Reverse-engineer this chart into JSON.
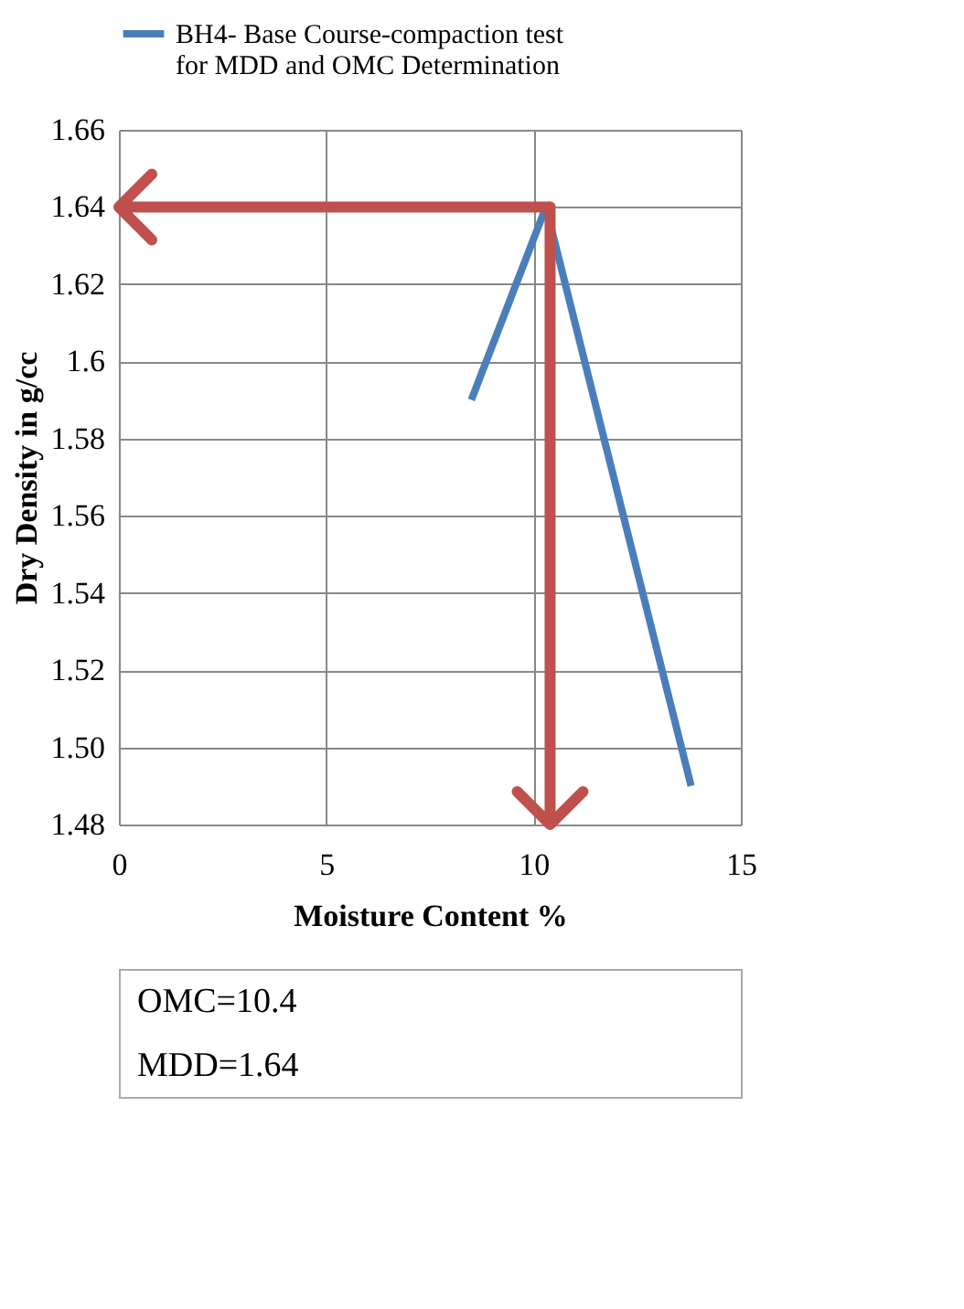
{
  "chart_data": {
    "type": "line",
    "xlabel": "Moisture Content %",
    "ylabel": "Dry Density in g/cc",
    "x": [
      8.5,
      10.3,
      13.8
    ],
    "series": [
      {
        "name": "BH4- Base Course-compaction test for MDD and OMC Determination",
        "color": "#4a7ebb",
        "values": [
          1.59,
          1.64,
          1.49
        ]
      }
    ],
    "xlim": [
      0,
      15
    ],
    "xticks": [
      0,
      5,
      10,
      15
    ],
    "ylim": [
      1.48,
      1.66
    ],
    "yticks": [
      {
        "value": 1.48,
        "label": "1.48"
      },
      {
        "value": 1.5,
        "label": "1.50"
      },
      1.52,
      1.54,
      1.56,
      1.58,
      {
        "value": 1.6,
        "label": "1.6"
      },
      1.62,
      1.64,
      1.66
    ],
    "grid": true,
    "legend": "top",
    "marker": "none",
    "line_style": "solid",
    "ref_lines": [
      {
        "axis": "y",
        "value": 1.64,
        "color": "#c0504d"
      },
      {
        "axis": "x",
        "value": 10.4,
        "color": "#c0504d"
      }
    ],
    "annotations": [
      "OMC=10.4",
      "MDD=1.64"
    ]
  }
}
